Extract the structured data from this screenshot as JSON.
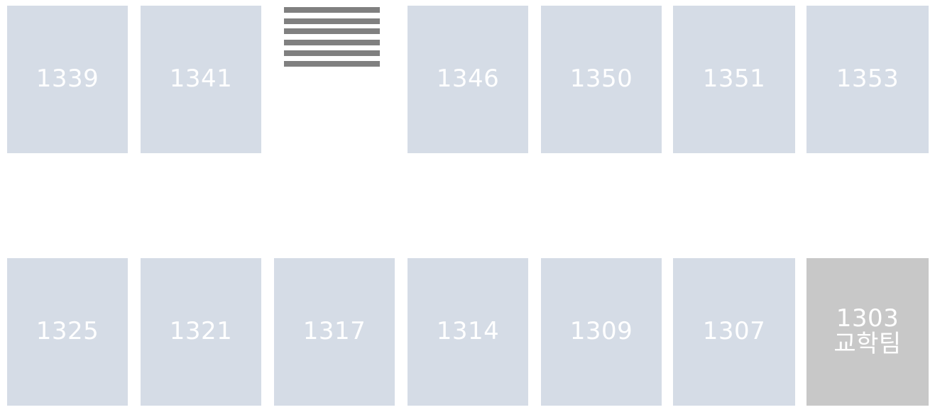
{
  "top_row": [
    {
      "label": "1339"
    },
    {
      "label": "1341"
    },
    {
      "label": "1346"
    },
    {
      "label": "1350"
    },
    {
      "label": "1351"
    },
    {
      "label": "1353"
    }
  ],
  "bottom_row": [
    {
      "label": "1325"
    },
    {
      "label": "1321"
    },
    {
      "label": "1317"
    },
    {
      "label": "1314"
    },
    {
      "label": "1309"
    },
    {
      "label": "1307"
    },
    {
      "label": "1303",
      "sub": "교학팀"
    }
  ],
  "colors": {
    "room": "#d5dce6",
    "room_special": "#c8c8c8",
    "stairs": "#808080",
    "text": "#ffffff"
  },
  "icons": {
    "stairs": "stairs-icon"
  }
}
